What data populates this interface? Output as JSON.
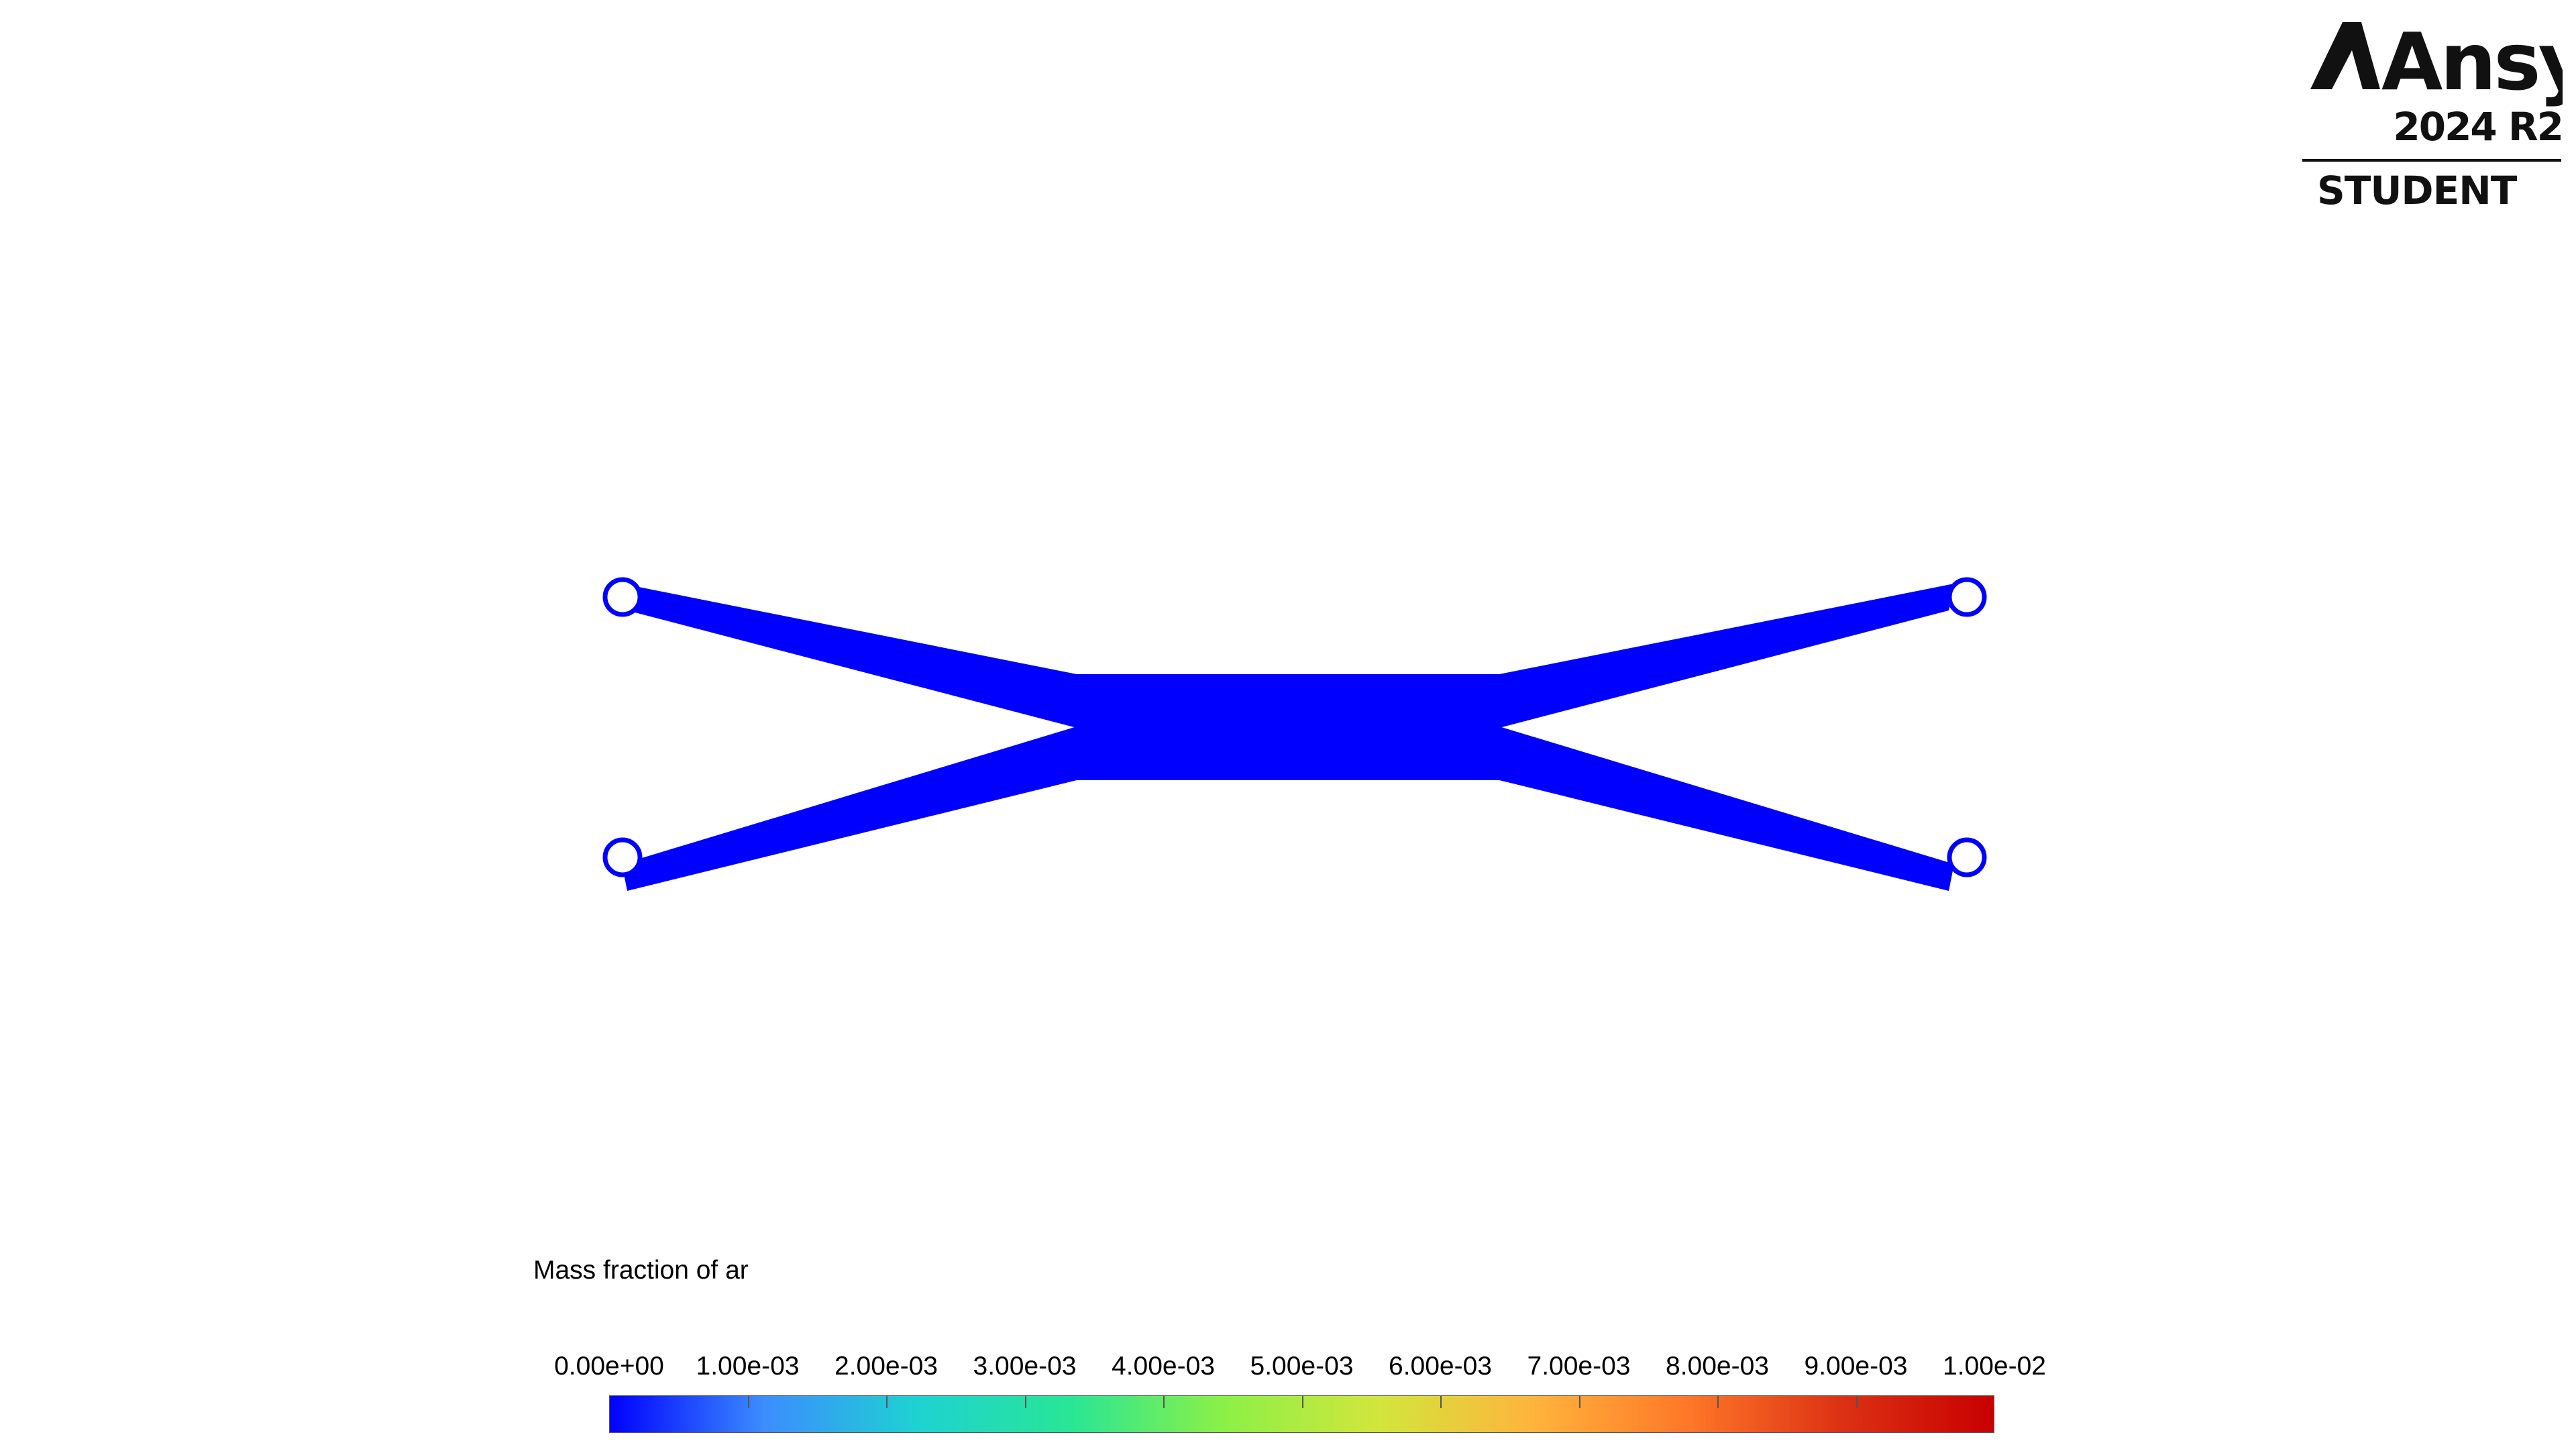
{
  "logo": {
    "brand": "Ansys",
    "version": "2024 R2",
    "edition": "STUDENT"
  },
  "legend": {
    "title": "Mass fraction of ar",
    "tick_labels": [
      "0.00e+00",
      "1.00e-03",
      "2.00e-03",
      "3.00e-03",
      "4.00e-03",
      "5.00e-03",
      "6.00e-03",
      "7.00e-03",
      "8.00e-03",
      "9.00e-03",
      "1.00e-02"
    ],
    "range": [
      0.0,
      0.01
    ],
    "colormap": [
      "#0000ff",
      "#3c8cff",
      "#1ed2d2",
      "#28e696",
      "#8cf046",
      "#d2e63c",
      "#ffb43c",
      "#ff7828",
      "#dc3214",
      "#c80000"
    ]
  },
  "field": {
    "value": 0.0,
    "fill_color": "#0000ff"
  }
}
